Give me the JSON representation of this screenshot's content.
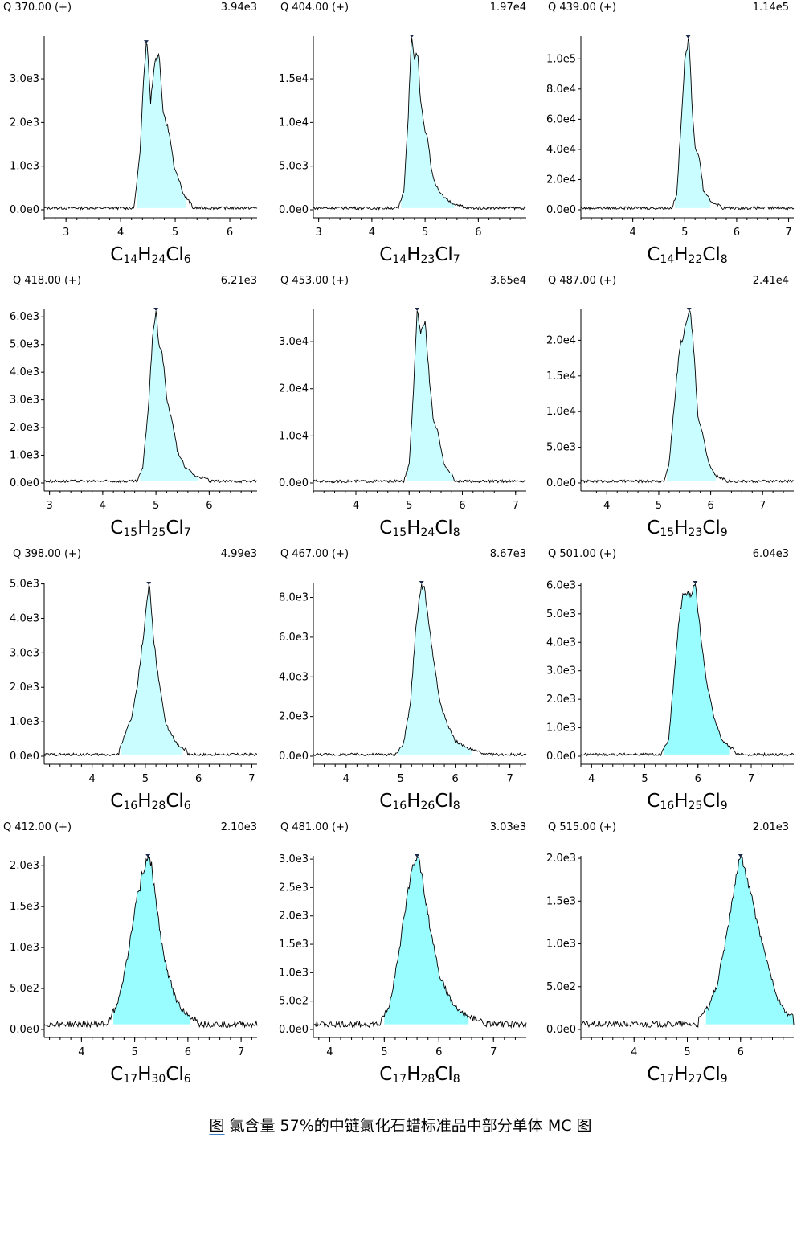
{
  "caption": {
    "prefix": "图",
    "text": "氯含量 57%的中链氯化石蜡标准品中部分单体 MC 图"
  },
  "colors": {
    "fill": "#99fcff",
    "fill_light": "#c9fdff",
    "line": "#000000",
    "axis": "#000000",
    "marker": "#1b2a4a"
  },
  "chart_data": [
    {
      "type": "area",
      "q_label": "Q 370.00 (+)",
      "max_label": "3.94e3",
      "formula": [
        "C",
        "14",
        "H",
        "24",
        "Cl",
        "6"
      ],
      "xlim": [
        2.6,
        6.5
      ],
      "xticks": [
        "3",
        "4",
        "5",
        "6"
      ],
      "ylim": [
        0,
        3940
      ],
      "yticks": [
        {
          "v": 0,
          "t": "0.0e0"
        },
        {
          "v": 1000,
          "t": "1.0e3"
        },
        {
          "v": 2000,
          "t": "2.0e3"
        },
        {
          "v": 3000,
          "t": "3.0e3"
        }
      ],
      "peak_x": [
        4.3,
        5.2
      ],
      "fill": "light",
      "series": [
        [
          4.25,
          0.02
        ],
        [
          4.35,
          0.3
        ],
        [
          4.42,
          0.75
        ],
        [
          4.48,
          1.0
        ],
        [
          4.55,
          0.62
        ],
        [
          4.62,
          0.85
        ],
        [
          4.7,
          0.9
        ],
        [
          4.78,
          0.55
        ],
        [
          4.85,
          0.48
        ],
        [
          4.9,
          0.42
        ],
        [
          4.98,
          0.24
        ],
        [
          5.05,
          0.18
        ],
        [
          5.15,
          0.08
        ],
        [
          5.3,
          0.02
        ]
      ]
    },
    {
      "type": "area",
      "q_label": "Q 404.00 (+)",
      "max_label": "1.97e4",
      "formula": [
        "C",
        "14",
        "H",
        "23",
        "Cl",
        "7"
      ],
      "xlim": [
        2.9,
        6.9
      ],
      "xticks": [
        "3",
        "4",
        "5",
        "6"
      ],
      "ylim": [
        0,
        19700
      ],
      "yticks": [
        {
          "v": 0,
          "t": "0.0e0"
        },
        {
          "v": 5000,
          "t": "5.0e3"
        },
        {
          "v": 10000,
          "t": "1.0e4"
        },
        {
          "v": 15000,
          "t": "1.5e4"
        }
      ],
      "peak_x": [
        4.55,
        5.55
      ],
      "fill": "light",
      "series": [
        [
          4.5,
          0.0
        ],
        [
          4.6,
          0.1
        ],
        [
          4.68,
          0.5
        ],
        [
          4.74,
          1.0
        ],
        [
          4.8,
          0.85
        ],
        [
          4.86,
          0.9
        ],
        [
          4.92,
          0.6
        ],
        [
          5.0,
          0.45
        ],
        [
          5.05,
          0.4
        ],
        [
          5.12,
          0.22
        ],
        [
          5.22,
          0.12
        ],
        [
          5.35,
          0.06
        ],
        [
          5.5,
          0.03
        ],
        [
          5.7,
          0.01
        ]
      ]
    },
    {
      "type": "area",
      "q_label": "Q 439.00 (+)",
      "max_label": "1.14e5",
      "formula": [
        "C",
        "14",
        "H",
        "22",
        "Cl",
        "8"
      ],
      "xlim": [
        3.0,
        7.1
      ],
      "xticks": [
        "4",
        "5",
        "6",
        "7"
      ],
      "ylim": [
        0,
        114000
      ],
      "yticks": [
        {
          "v": 0,
          "t": "0.0e0"
        },
        {
          "v": 20000,
          "t": "2.0e4"
        },
        {
          "v": 40000,
          "t": "4.0e4"
        },
        {
          "v": 60000,
          "t": "6.0e4"
        },
        {
          "v": 80000,
          "t": "8.0e4"
        },
        {
          "v": 100000,
          "t": "1.0e5"
        }
      ],
      "peak_x": [
        4.8,
        5.5
      ],
      "fill": "light",
      "series": [
        [
          4.75,
          0.0
        ],
        [
          4.85,
          0.08
        ],
        [
          4.92,
          0.45
        ],
        [
          5.0,
          0.85
        ],
        [
          5.08,
          1.0
        ],
        [
          5.14,
          0.6
        ],
        [
          5.2,
          0.35
        ],
        [
          5.28,
          0.3
        ],
        [
          5.36,
          0.1
        ],
        [
          5.5,
          0.04
        ],
        [
          5.7,
          0.01
        ]
      ]
    },
    {
      "type": "area",
      "q_label": "Q 418.00 (+)",
      "max_label": "6.21e3",
      "formula": [
        "C",
        "15",
        "H",
        "25",
        "Cl",
        "7"
      ],
      "xlim": [
        2.9,
        6.9
      ],
      "xticks": [
        "3",
        "4",
        "5",
        "6"
      ],
      "ylim": [
        0,
        6210
      ],
      "yticks": [
        {
          "v": 0,
          "t": "0.0e0"
        },
        {
          "v": 1000,
          "t": "1.0e3"
        },
        {
          "v": 2000,
          "t": "2.0e3"
        },
        {
          "v": 3000,
          "t": "3.0e3"
        },
        {
          "v": 4000,
          "t": "4.0e3"
        },
        {
          "v": 5000,
          "t": "5.0e3"
        },
        {
          "v": 6000,
          "t": "6.0e3"
        }
      ],
      "peak_x": [
        4.7,
        5.8
      ],
      "fill": "light",
      "series": [
        [
          4.65,
          0.0
        ],
        [
          4.75,
          0.08
        ],
        [
          4.85,
          0.4
        ],
        [
          4.94,
          0.85
        ],
        [
          5.0,
          1.0
        ],
        [
          5.06,
          0.78
        ],
        [
          5.12,
          0.75
        ],
        [
          5.2,
          0.48
        ],
        [
          5.3,
          0.36
        ],
        [
          5.4,
          0.18
        ],
        [
          5.55,
          0.08
        ],
        [
          5.75,
          0.03
        ],
        [
          6.0,
          0.01
        ]
      ]
    },
    {
      "type": "area",
      "q_label": "Q 453.00 (+)",
      "max_label": "3.65e4",
      "formula": [
        "C",
        "15",
        "H",
        "24",
        "Cl",
        "8"
      ],
      "xlim": [
        3.2,
        7.2
      ],
      "xticks": [
        "4",
        "5",
        "6",
        "7"
      ],
      "ylim": [
        0,
        36500
      ],
      "yticks": [
        {
          "v": 0,
          "t": "0.0e0"
        },
        {
          "v": 10000,
          "t": "1.0e4"
        },
        {
          "v": 20000,
          "t": "2.0e4"
        },
        {
          "v": 30000,
          "t": "3.0e4"
        }
      ],
      "peak_x": [
        4.95,
        5.9
      ],
      "fill": "light",
      "series": [
        [
          4.9,
          0.0
        ],
        [
          5.0,
          0.1
        ],
        [
          5.08,
          0.5
        ],
        [
          5.15,
          1.0
        ],
        [
          5.22,
          0.88
        ],
        [
          5.3,
          0.92
        ],
        [
          5.38,
          0.6
        ],
        [
          5.46,
          0.34
        ],
        [
          5.55,
          0.28
        ],
        [
          5.65,
          0.1
        ],
        [
          5.85,
          0.02
        ]
      ]
    },
    {
      "type": "area",
      "q_label": "Q 487.00 (+)",
      "max_label": "2.41e4",
      "formula": [
        "C",
        "15",
        "H",
        "23",
        "Cl",
        "9"
      ],
      "xlim": [
        3.5,
        7.6
      ],
      "xticks": [
        "4",
        "5",
        "6",
        "7"
      ],
      "ylim": [
        0,
        24100
      ],
      "yticks": [
        {
          "v": 0,
          "t": "0.0e0"
        },
        {
          "v": 5000,
          "t": "5.0e3"
        },
        {
          "v": 10000,
          "t": "1.0e4"
        },
        {
          "v": 15000,
          "t": "1.5e4"
        },
        {
          "v": 20000,
          "t": "2.0e4"
        }
      ],
      "peak_x": [
        5.15,
        6.1
      ],
      "fill": "light",
      "series": [
        [
          5.1,
          0.0
        ],
        [
          5.2,
          0.1
        ],
        [
          5.3,
          0.45
        ],
        [
          5.4,
          0.78
        ],
        [
          5.5,
          0.88
        ],
        [
          5.6,
          1.0
        ],
        [
          5.68,
          0.75
        ],
        [
          5.75,
          0.38
        ],
        [
          5.85,
          0.28
        ],
        [
          5.95,
          0.12
        ],
        [
          6.1,
          0.03
        ],
        [
          6.3,
          0.01
        ]
      ]
    },
    {
      "type": "area",
      "q_label": "Q 398.00 (+)",
      "max_label": "4.99e3",
      "formula": [
        "C",
        "16",
        "H",
        "28",
        "Cl",
        "6"
      ],
      "xlim": [
        3.1,
        7.1
      ],
      "xticks": [
        "4",
        "5",
        "6",
        "7"
      ],
      "ylim": [
        0,
        4990
      ],
      "yticks": [
        {
          "v": 0,
          "t": "0.0e0"
        },
        {
          "v": 1000,
          "t": "1.0e3"
        },
        {
          "v": 2000,
          "t": "2.0e3"
        },
        {
          "v": 3000,
          "t": "3.0e3"
        },
        {
          "v": 4000,
          "t": "4.0e3"
        },
        {
          "v": 5000,
          "t": "5.0e3"
        }
      ],
      "peak_x": [
        4.55,
        5.7
      ],
      "fill": "light",
      "series": [
        [
          4.5,
          0.02
        ],
        [
          4.62,
          0.12
        ],
        [
          4.75,
          0.22
        ],
        [
          4.85,
          0.4
        ],
        [
          4.95,
          0.65
        ],
        [
          5.02,
          0.85
        ],
        [
          5.08,
          1.0
        ],
        [
          5.14,
          0.72
        ],
        [
          5.2,
          0.55
        ],
        [
          5.28,
          0.38
        ],
        [
          5.38,
          0.18
        ],
        [
          5.48,
          0.12
        ],
        [
          5.6,
          0.06
        ],
        [
          5.8,
          0.02
        ]
      ]
    },
    {
      "type": "area",
      "q_label": "Q 467.00 (+)",
      "max_label": "8.67e3",
      "formula": [
        "C",
        "16",
        "H",
        "26",
        "Cl",
        "8"
      ],
      "xlim": [
        3.4,
        7.3
      ],
      "xticks": [
        "4",
        "5",
        "6",
        "7"
      ],
      "ylim": [
        0,
        8670
      ],
      "yticks": [
        {
          "v": 0,
          "t": "0.0e0"
        },
        {
          "v": 2000,
          "t": "2.0e3"
        },
        {
          "v": 4000,
          "t": "4.0e3"
        },
        {
          "v": 6000,
          "t": "6.0e3"
        },
        {
          "v": 8000,
          "t": "8.0e3"
        }
      ],
      "peak_x": [
        4.95,
        6.3
      ],
      "fill": "light",
      "series": [
        [
          4.9,
          0.0
        ],
        [
          5.05,
          0.06
        ],
        [
          5.18,
          0.3
        ],
        [
          5.28,
          0.75
        ],
        [
          5.36,
          0.95
        ],
        [
          5.42,
          1.0
        ],
        [
          5.5,
          0.8
        ],
        [
          5.6,
          0.55
        ],
        [
          5.72,
          0.3
        ],
        [
          5.85,
          0.18
        ],
        [
          6.0,
          0.08
        ],
        [
          6.2,
          0.04
        ],
        [
          6.5,
          0.01
        ]
      ]
    },
    {
      "type": "area",
      "q_label": "Q 501.00 (+)",
      "max_label": "6.04e3",
      "formula": [
        "C",
        "16",
        "H",
        "25",
        "Cl",
        "9"
      ],
      "xlim": [
        3.8,
        7.8
      ],
      "xticks": [
        "4",
        "5",
        "6",
        "7"
      ],
      "ylim": [
        0,
        6040
      ],
      "yticks": [
        {
          "v": 0,
          "t": "0.0e0"
        },
        {
          "v": 1000,
          "t": "1.0e3"
        },
        {
          "v": 2000,
          "t": "2.0e3"
        },
        {
          "v": 3000,
          "t": "3.0e3"
        },
        {
          "v": 4000,
          "t": "4.0e3"
        },
        {
          "v": 5000,
          "t": "5.0e3"
        },
        {
          "v": 6000,
          "t": "6.0e3"
        }
      ],
      "peak_x": [
        5.35,
        6.6
      ],
      "fill": "dark",
      "series": [
        [
          5.3,
          0.0
        ],
        [
          5.45,
          0.08
        ],
        [
          5.55,
          0.45
        ],
        [
          5.65,
          0.8
        ],
        [
          5.75,
          0.96
        ],
        [
          5.85,
          0.92
        ],
        [
          5.95,
          1.0
        ],
        [
          6.05,
          0.7
        ],
        [
          6.15,
          0.45
        ],
        [
          6.3,
          0.22
        ],
        [
          6.45,
          0.08
        ],
        [
          6.7,
          0.02
        ]
      ]
    },
    {
      "type": "area",
      "q_label": "Q 412.00 (+)",
      "max_label": "2.10e3",
      "formula": [
        "C",
        "17",
        "H",
        "30",
        "Cl",
        "6"
      ],
      "xlim": [
        3.3,
        7.3
      ],
      "xticks": [
        "4",
        "5",
        "6",
        "7"
      ],
      "ylim": [
        0,
        2100
      ],
      "yticks": [
        {
          "v": 0,
          "t": "0.0e0"
        },
        {
          "v": 500,
          "t": "5.0e2"
        },
        {
          "v": 1000,
          "t": "1.0e3"
        },
        {
          "v": 1500,
          "t": "1.5e3"
        },
        {
          "v": 2000,
          "t": "2.0e3"
        }
      ],
      "peak_x": [
        4.6,
        6.05
      ],
      "fill": "dark",
      "series": [
        [
          4.5,
          0.02
        ],
        [
          4.65,
          0.1
        ],
        [
          4.78,
          0.25
        ],
        [
          4.9,
          0.45
        ],
        [
          5.02,
          0.7
        ],
        [
          5.15,
          0.88
        ],
        [
          5.28,
          1.0
        ],
        [
          5.4,
          0.72
        ],
        [
          5.5,
          0.48
        ],
        [
          5.62,
          0.3
        ],
        [
          5.78,
          0.14
        ],
        [
          5.95,
          0.06
        ],
        [
          6.2,
          0.02
        ]
      ]
    },
    {
      "type": "area",
      "q_label": "Q 481.00 (+)",
      "max_label": "3.03e3",
      "formula": [
        "C",
        "17",
        "H",
        "28",
        "Cl",
        "8"
      ],
      "xlim": [
        3.7,
        7.6
      ],
      "xticks": [
        "4",
        "5",
        "6",
        "7"
      ],
      "ylim": [
        0,
        3030
      ],
      "yticks": [
        {
          "v": 0,
          "t": "0.0e0"
        },
        {
          "v": 500,
          "t": "5.0e2"
        },
        {
          "v": 1000,
          "t": "1.0e3"
        },
        {
          "v": 1500,
          "t": "1.5e3"
        },
        {
          "v": 2000,
          "t": "2.0e3"
        },
        {
          "v": 2500,
          "t": "2.5e3"
        },
        {
          "v": 3000,
          "t": "3.0e3"
        }
      ],
      "peak_x": [
        5.0,
        6.55
      ],
      "fill": "dark",
      "series": [
        [
          4.95,
          0.02
        ],
        [
          5.1,
          0.12
        ],
        [
          5.25,
          0.38
        ],
        [
          5.4,
          0.7
        ],
        [
          5.52,
          0.92
        ],
        [
          5.62,
          1.0
        ],
        [
          5.72,
          0.8
        ],
        [
          5.85,
          0.55
        ],
        [
          6.0,
          0.3
        ],
        [
          6.15,
          0.18
        ],
        [
          6.3,
          0.1
        ],
        [
          6.5,
          0.05
        ],
        [
          6.8,
          0.02
        ]
      ]
    },
    {
      "type": "area",
      "q_label": "Q 515.00 (+)",
      "max_label": "2.01e3",
      "formula": [
        "C",
        "17",
        "H",
        "27",
        "Cl",
        "9"
      ],
      "xlim": [
        3.0,
        7.0
      ],
      "xticks": [
        "4",
        "5",
        "6"
      ],
      "ylim": [
        0,
        2010
      ],
      "yticks": [
        {
          "v": 0,
          "t": "0.0e0"
        },
        {
          "v": 500,
          "t": "5.0e2"
        },
        {
          "v": 1000,
          "t": "1.0e3"
        },
        {
          "v": 1500,
          "t": "1.5e3"
        },
        {
          "v": 2000,
          "t": "2.0e3"
        }
      ],
      "peak_x": [
        5.35,
        7.0
      ],
      "fill": "dark",
      "series": [
        [
          5.2,
          0.02
        ],
        [
          5.4,
          0.1
        ],
        [
          5.55,
          0.22
        ],
        [
          5.7,
          0.45
        ],
        [
          5.85,
          0.72
        ],
        [
          5.95,
          0.92
        ],
        [
          6.02,
          1.0
        ],
        [
          6.12,
          0.85
        ],
        [
          6.25,
          0.68
        ],
        [
          6.4,
          0.48
        ],
        [
          6.55,
          0.3
        ],
        [
          6.7,
          0.15
        ],
        [
          6.85,
          0.07
        ],
        [
          7.0,
          0.04
        ]
      ]
    }
  ]
}
